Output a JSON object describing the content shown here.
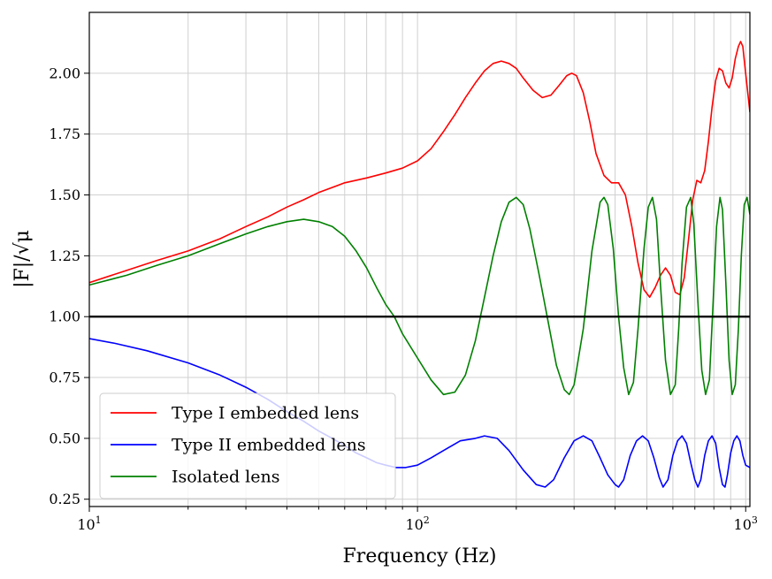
{
  "chart_data": {
    "type": "line",
    "xscale": "log",
    "xlim": [
      10,
      1030
    ],
    "ylim": [
      0.22,
      2.25
    ],
    "xlabel": "Frequency (Hz)",
    "ylabel": "|F|/√μ",
    "x_ticks": [
      {
        "value": 10,
        "base": "10",
        "exp": "1"
      },
      {
        "value": 100,
        "base": "10",
        "exp": "2"
      },
      {
        "value": 1000,
        "base": "10",
        "exp": "3"
      }
    ],
    "y_ticks": [
      {
        "value": 0.25,
        "label": "0.25"
      },
      {
        "value": 0.5,
        "label": "0.50"
      },
      {
        "value": 0.75,
        "label": "0.75"
      },
      {
        "value": 1.0,
        "label": "1.00"
      },
      {
        "value": 1.25,
        "label": "1.25"
      },
      {
        "value": 1.5,
        "label": "1.50"
      },
      {
        "value": 1.75,
        "label": "1.75"
      },
      {
        "value": 2.0,
        "label": "2.00"
      }
    ],
    "grid": true,
    "legend_position": "lower-left",
    "reference_line": {
      "y": 1.0,
      "color": "#000000"
    },
    "series": [
      {
        "name": "Type I embedded lens",
        "color": "#ff0000",
        "points": [
          [
            10,
            1.14
          ],
          [
            13,
            1.19
          ],
          [
            16,
            1.23
          ],
          [
            20,
            1.27
          ],
          [
            25,
            1.32
          ],
          [
            30,
            1.37
          ],
          [
            35,
            1.41
          ],
          [
            40,
            1.45
          ],
          [
            45,
            1.48
          ],
          [
            50,
            1.51
          ],
          [
            60,
            1.55
          ],
          [
            70,
            1.57
          ],
          [
            80,
            1.59
          ],
          [
            90,
            1.61
          ],
          [
            100,
            1.64
          ],
          [
            110,
            1.69
          ],
          [
            120,
            1.76
          ],
          [
            130,
            1.83
          ],
          [
            140,
            1.9
          ],
          [
            150,
            1.96
          ],
          [
            160,
            2.01
          ],
          [
            170,
            2.04
          ],
          [
            180,
            2.05
          ],
          [
            190,
            2.04
          ],
          [
            200,
            2.02
          ],
          [
            210,
            1.98
          ],
          [
            225,
            1.93
          ],
          [
            240,
            1.9
          ],
          [
            255,
            1.91
          ],
          [
            270,
            1.95
          ],
          [
            285,
            1.99
          ],
          [
            295,
            2.0
          ],
          [
            305,
            1.99
          ],
          [
            320,
            1.92
          ],
          [
            335,
            1.8
          ],
          [
            350,
            1.67
          ],
          [
            370,
            1.58
          ],
          [
            390,
            1.55
          ],
          [
            410,
            1.55
          ],
          [
            430,
            1.5
          ],
          [
            450,
            1.37
          ],
          [
            470,
            1.22
          ],
          [
            490,
            1.11
          ],
          [
            510,
            1.08
          ],
          [
            530,
            1.12
          ],
          [
            550,
            1.17
          ],
          [
            570,
            1.2
          ],
          [
            590,
            1.17
          ],
          [
            610,
            1.1
          ],
          [
            630,
            1.09
          ],
          [
            650,
            1.16
          ],
          [
            670,
            1.32
          ],
          [
            690,
            1.48
          ],
          [
            710,
            1.56
          ],
          [
            730,
            1.55
          ],
          [
            750,
            1.6
          ],
          [
            770,
            1.72
          ],
          [
            790,
            1.86
          ],
          [
            810,
            1.97
          ],
          [
            830,
            2.02
          ],
          [
            850,
            2.01
          ],
          [
            870,
            1.96
          ],
          [
            890,
            1.94
          ],
          [
            910,
            1.98
          ],
          [
            930,
            2.06
          ],
          [
            950,
            2.11
          ],
          [
            965,
            2.13
          ],
          [
            980,
            2.11
          ],
          [
            1000,
            2.0
          ],
          [
            1030,
            1.84
          ]
        ]
      },
      {
        "name": "Type II embedded lens",
        "color": "#0000ff",
        "points": [
          [
            10,
            0.91
          ],
          [
            12,
            0.89
          ],
          [
            15,
            0.86
          ],
          [
            20,
            0.81
          ],
          [
            25,
            0.76
          ],
          [
            30,
            0.71
          ],
          [
            35,
            0.66
          ],
          [
            40,
            0.61
          ],
          [
            45,
            0.57
          ],
          [
            50,
            0.53
          ],
          [
            55,
            0.5
          ],
          [
            60,
            0.47
          ],
          [
            65,
            0.44
          ],
          [
            70,
            0.42
          ],
          [
            75,
            0.4
          ],
          [
            80,
            0.39
          ],
          [
            86,
            0.38
          ],
          [
            92,
            0.38
          ],
          [
            100,
            0.39
          ],
          [
            110,
            0.42
          ],
          [
            120,
            0.45
          ],
          [
            135,
            0.49
          ],
          [
            150,
            0.5
          ],
          [
            160,
            0.51
          ],
          [
            175,
            0.5
          ],
          [
            190,
            0.45
          ],
          [
            210,
            0.37
          ],
          [
            230,
            0.31
          ],
          [
            245,
            0.3
          ],
          [
            260,
            0.33
          ],
          [
            280,
            0.42
          ],
          [
            300,
            0.49
          ],
          [
            320,
            0.51
          ],
          [
            340,
            0.49
          ],
          [
            360,
            0.42
          ],
          [
            380,
            0.35
          ],
          [
            400,
            0.31
          ],
          [
            410,
            0.3
          ],
          [
            425,
            0.33
          ],
          [
            445,
            0.43
          ],
          [
            465,
            0.49
          ],
          [
            485,
            0.51
          ],
          [
            505,
            0.49
          ],
          [
            525,
            0.42
          ],
          [
            545,
            0.34
          ],
          [
            560,
            0.3
          ],
          [
            580,
            0.33
          ],
          [
            600,
            0.43
          ],
          [
            620,
            0.49
          ],
          [
            640,
            0.51
          ],
          [
            660,
            0.48
          ],
          [
            680,
            0.4
          ],
          [
            700,
            0.33
          ],
          [
            715,
            0.3
          ],
          [
            730,
            0.33
          ],
          [
            750,
            0.43
          ],
          [
            770,
            0.49
          ],
          [
            790,
            0.51
          ],
          [
            810,
            0.48
          ],
          [
            830,
            0.38
          ],
          [
            850,
            0.31
          ],
          [
            865,
            0.3
          ],
          [
            880,
            0.35
          ],
          [
            900,
            0.44
          ],
          [
            920,
            0.49
          ],
          [
            940,
            0.51
          ],
          [
            960,
            0.49
          ],
          [
            980,
            0.43
          ],
          [
            1000,
            0.39
          ],
          [
            1030,
            0.38
          ]
        ]
      },
      {
        "name": "Isolated lens",
        "color": "#008000",
        "points": [
          [
            10,
            1.13
          ],
          [
            13,
            1.17
          ],
          [
            16,
            1.21
          ],
          [
            20,
            1.25
          ],
          [
            25,
            1.3
          ],
          [
            30,
            1.34
          ],
          [
            35,
            1.37
          ],
          [
            40,
            1.39
          ],
          [
            45,
            1.4
          ],
          [
            50,
            1.39
          ],
          [
            55,
            1.37
          ],
          [
            60,
            1.33
          ],
          [
            65,
            1.27
          ],
          [
            70,
            1.2
          ],
          [
            75,
            1.12
          ],
          [
            80,
            1.05
          ],
          [
            85,
            1.0
          ],
          [
            90,
            0.93
          ],
          [
            100,
            0.83
          ],
          [
            110,
            0.74
          ],
          [
            120,
            0.68
          ],
          [
            130,
            0.69
          ],
          [
            140,
            0.76
          ],
          [
            150,
            0.9
          ],
          [
            160,
            1.08
          ],
          [
            170,
            1.25
          ],
          [
            180,
            1.39
          ],
          [
            190,
            1.47
          ],
          [
            200,
            1.49
          ],
          [
            210,
            1.46
          ],
          [
            220,
            1.36
          ],
          [
            235,
            1.17
          ],
          [
            250,
            0.98
          ],
          [
            265,
            0.8
          ],
          [
            280,
            0.7
          ],
          [
            290,
            0.68
          ],
          [
            300,
            0.72
          ],
          [
            320,
            0.95
          ],
          [
            340,
            1.27
          ],
          [
            360,
            1.47
          ],
          [
            370,
            1.49
          ],
          [
            380,
            1.46
          ],
          [
            395,
            1.28
          ],
          [
            410,
            1.0
          ],
          [
            425,
            0.79
          ],
          [
            440,
            0.68
          ],
          [
            455,
            0.73
          ],
          [
            470,
            0.95
          ],
          [
            490,
            1.28
          ],
          [
            505,
            1.45
          ],
          [
            520,
            1.49
          ],
          [
            535,
            1.4
          ],
          [
            550,
            1.13
          ],
          [
            570,
            0.82
          ],
          [
            590,
            0.68
          ],
          [
            610,
            0.72
          ],
          [
            625,
            0.95
          ],
          [
            640,
            1.22
          ],
          [
            660,
            1.45
          ],
          [
            680,
            1.49
          ],
          [
            695,
            1.38
          ],
          [
            715,
            1.06
          ],
          [
            735,
            0.78
          ],
          [
            755,
            0.68
          ],
          [
            775,
            0.74
          ],
          [
            795,
            1.05
          ],
          [
            815,
            1.37
          ],
          [
            835,
            1.49
          ],
          [
            850,
            1.44
          ],
          [
            870,
            1.14
          ],
          [
            890,
            0.82
          ],
          [
            910,
            0.68
          ],
          [
            930,
            0.72
          ],
          [
            950,
            0.95
          ],
          [
            970,
            1.25
          ],
          [
            990,
            1.46
          ],
          [
            1010,
            1.49
          ],
          [
            1030,
            1.42
          ]
        ]
      }
    ]
  }
}
